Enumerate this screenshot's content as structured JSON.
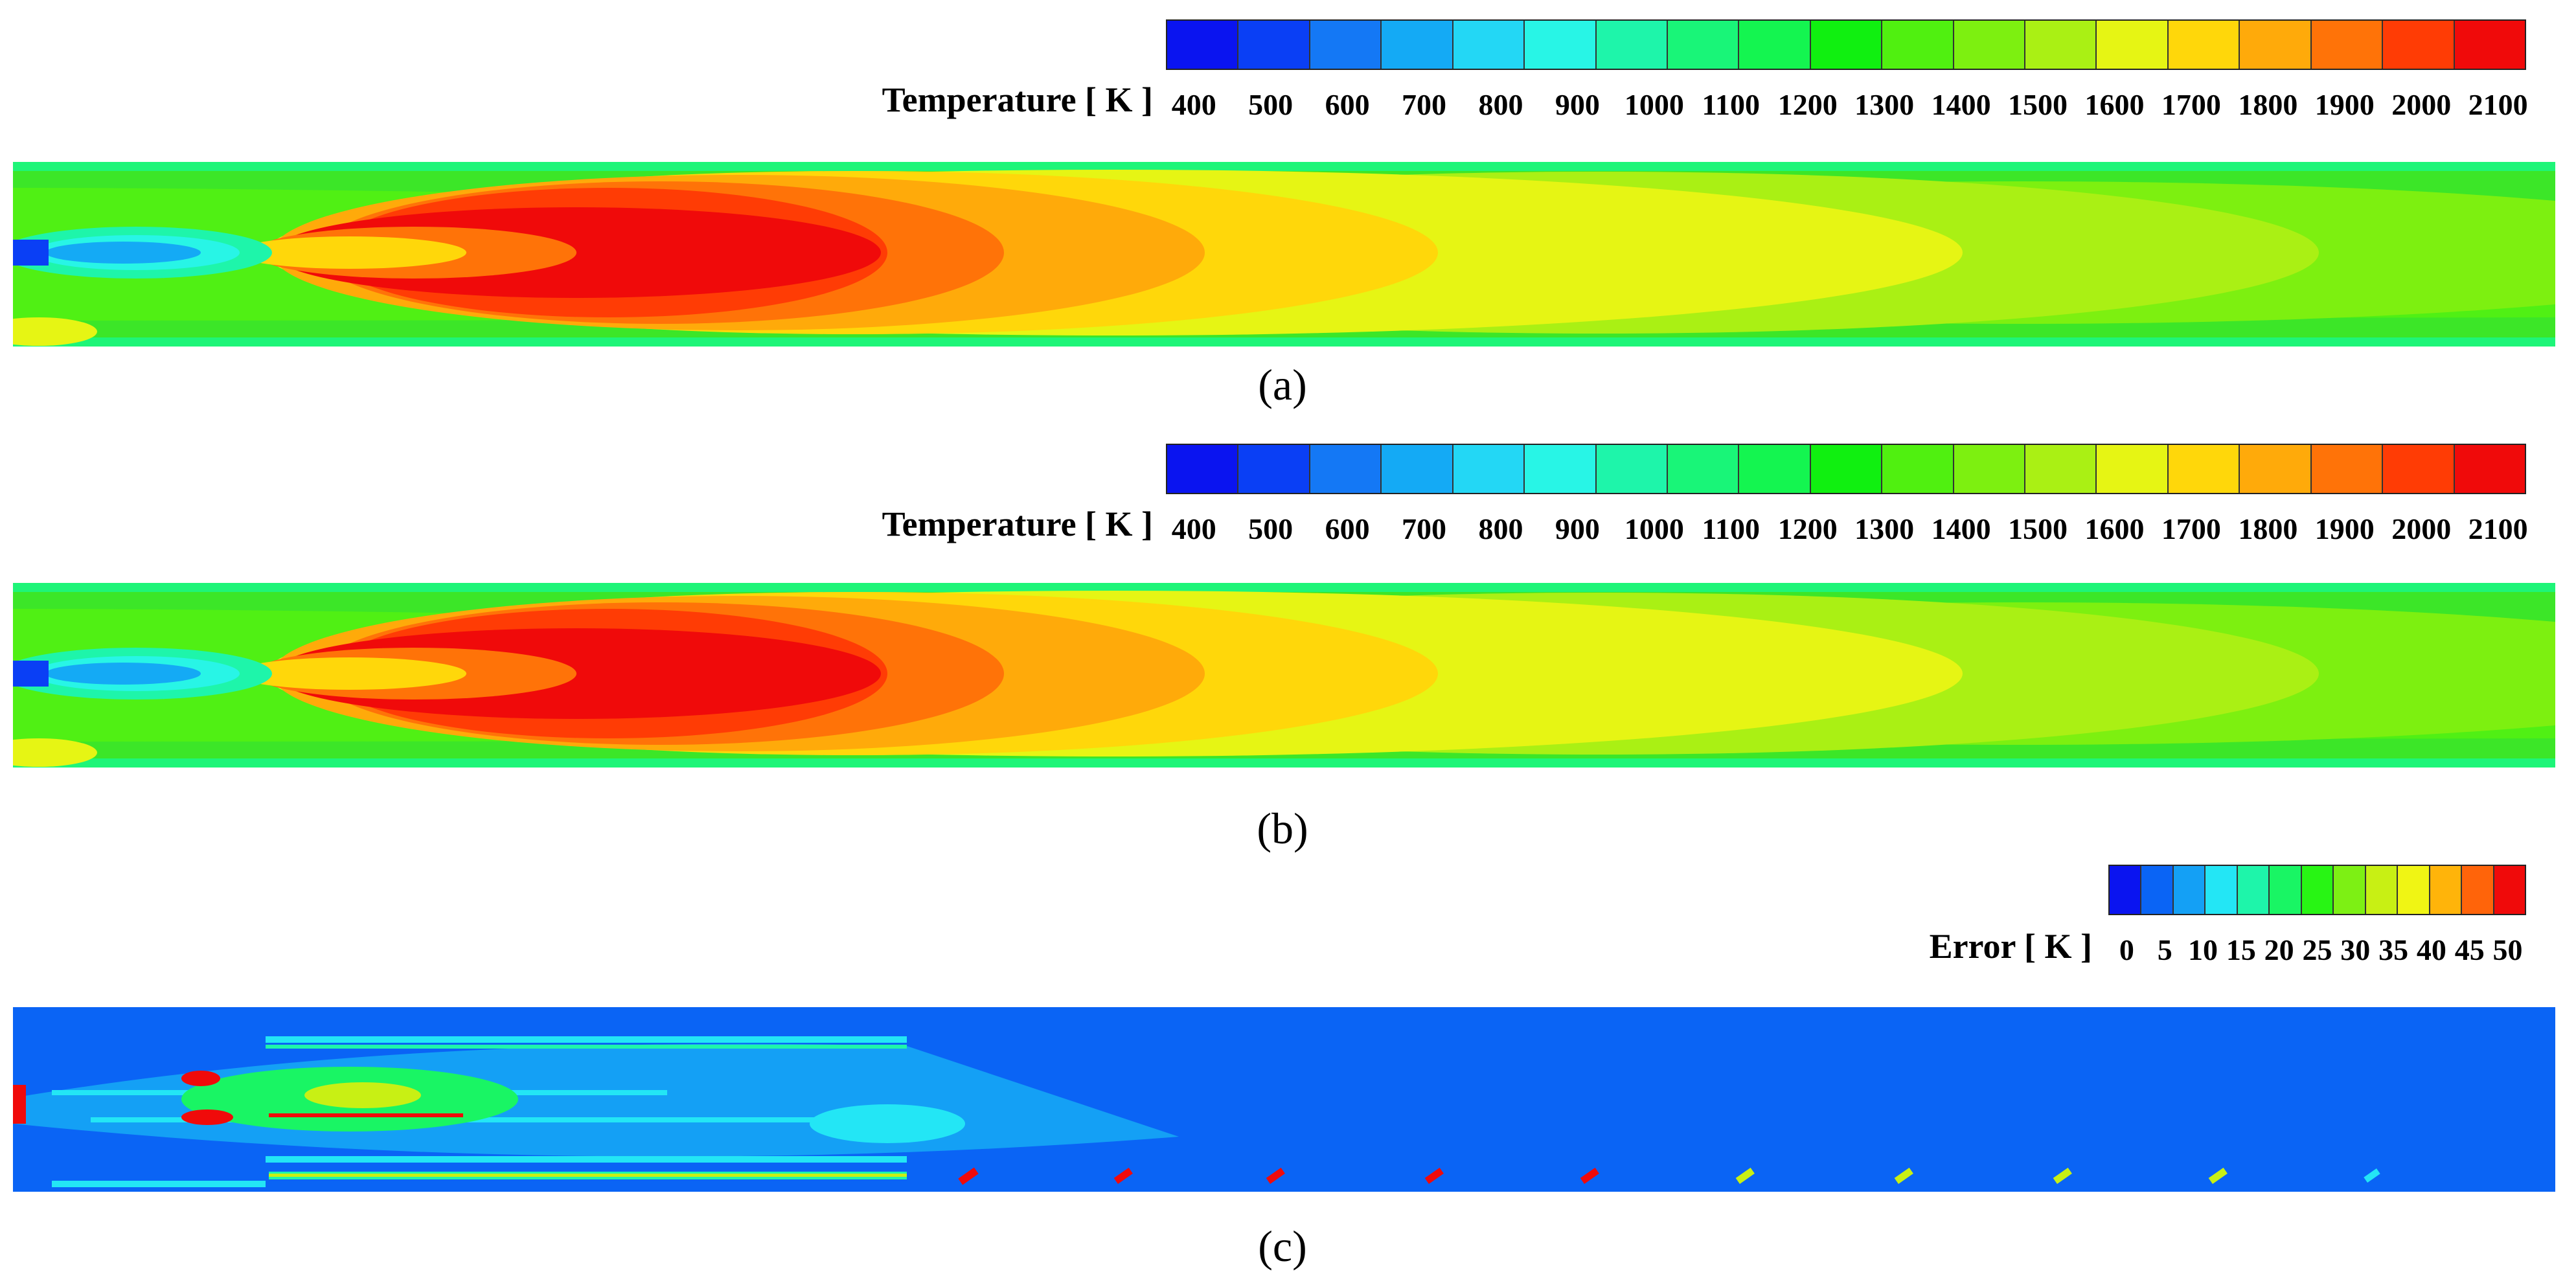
{
  "panel_a": {
    "colorbar_label": "Temperature [ K ]",
    "ticks": [
      "400",
      "500",
      "600",
      "700",
      "800",
      "900",
      "1000",
      "1100",
      "1200",
      "1300",
      "1400",
      "1500",
      "1600",
      "1700",
      "1800",
      "1900",
      "2000",
      "2100"
    ],
    "caption": "(a)"
  },
  "panel_b": {
    "colorbar_label": "Temperature [ K ]",
    "ticks": [
      "400",
      "500",
      "600",
      "700",
      "800",
      "900",
      "1000",
      "1100",
      "1200",
      "1300",
      "1400",
      "1500",
      "1600",
      "1700",
      "1800",
      "1900",
      "2000",
      "2100"
    ],
    "caption": "(b)"
  },
  "panel_c": {
    "colorbar_label": "Error [ K ]",
    "ticks": [
      "0",
      "5",
      "10",
      "15",
      "20",
      "25",
      "30",
      "35",
      "40",
      "45",
      "50"
    ],
    "caption": "(c)"
  },
  "colors": {
    "temperature_scale": [
      "#0a14f0",
      "#0a3ff5",
      "#1478f5",
      "#14aaf5",
      "#23d7f5",
      "#28f5e6",
      "#1ef5aa",
      "#19f578",
      "#14f550",
      "#10f010",
      "#50f010",
      "#7df010",
      "#aaf014",
      "#e6f514",
      "#ffd70a",
      "#ffaa0a",
      "#ff7308",
      "#ff3c05",
      "#f00a0a"
    ],
    "error_scale": [
      "#0a14f0",
      "#0a64f5",
      "#14a0f5",
      "#23e6f5",
      "#1ef5aa",
      "#19f564",
      "#28f514",
      "#7df014",
      "#c8f014",
      "#f0f514",
      "#ffb40a",
      "#ff640a",
      "#f00a0a"
    ],
    "field_background": "#32e632",
    "error_background": "#0a64f5"
  }
}
